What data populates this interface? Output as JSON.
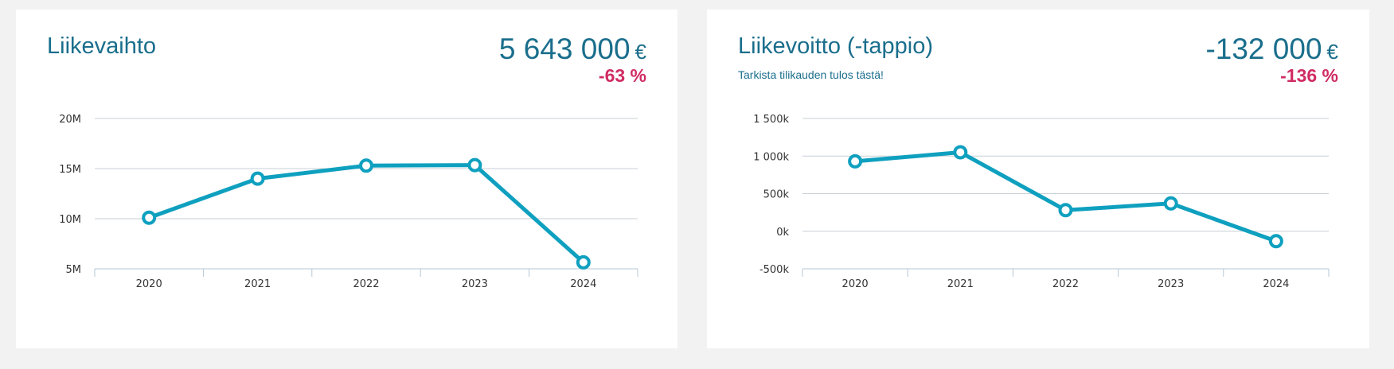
{
  "cards": [
    {
      "title": "Liikevaihto",
      "subtitle": "",
      "value": "5 643 000",
      "unit": "€",
      "change": "-63 %"
    },
    {
      "title": "Liikevoitto (-tappio)",
      "subtitle": "Tarkista tilikauden tulos tästä!",
      "value": "-132 000",
      "unit": "€",
      "change": "-136 %"
    }
  ],
  "colors": {
    "line": "#0fa0bf",
    "title": "#1a6e8c",
    "change": "#d02c63",
    "grid": "#c8cfd6"
  },
  "chart_data": [
    {
      "type": "line",
      "title": "Liikevaihto",
      "x": [
        "2020",
        "2021",
        "2022",
        "2023",
        "2024"
      ],
      "series": [
        {
          "values": [
            10100000,
            14000000,
            15300000,
            15350000,
            5643000
          ]
        }
      ],
      "ylim": [
        5000000,
        20000000
      ],
      "yticks": [
        5000000,
        10000000,
        15000000,
        20000000
      ],
      "ytick_labels": [
        "5M",
        "10M",
        "15M",
        "20M"
      ],
      "grid": true,
      "legend": "none"
    },
    {
      "type": "line",
      "title": "Liikevoitto (-tappio)",
      "x": [
        "2020",
        "2021",
        "2022",
        "2023",
        "2024"
      ],
      "series": [
        {
          "values": [
            930000,
            1050000,
            280000,
            370000,
            -132000
          ]
        }
      ],
      "ylim": [
        -500000,
        1500000
      ],
      "yticks": [
        -500000,
        0,
        500000,
        1000000,
        1500000
      ],
      "ytick_labels": [
        "-500k",
        "0k",
        "500k",
        "1 000k",
        "1 500k"
      ],
      "grid": true,
      "legend": "none"
    }
  ]
}
